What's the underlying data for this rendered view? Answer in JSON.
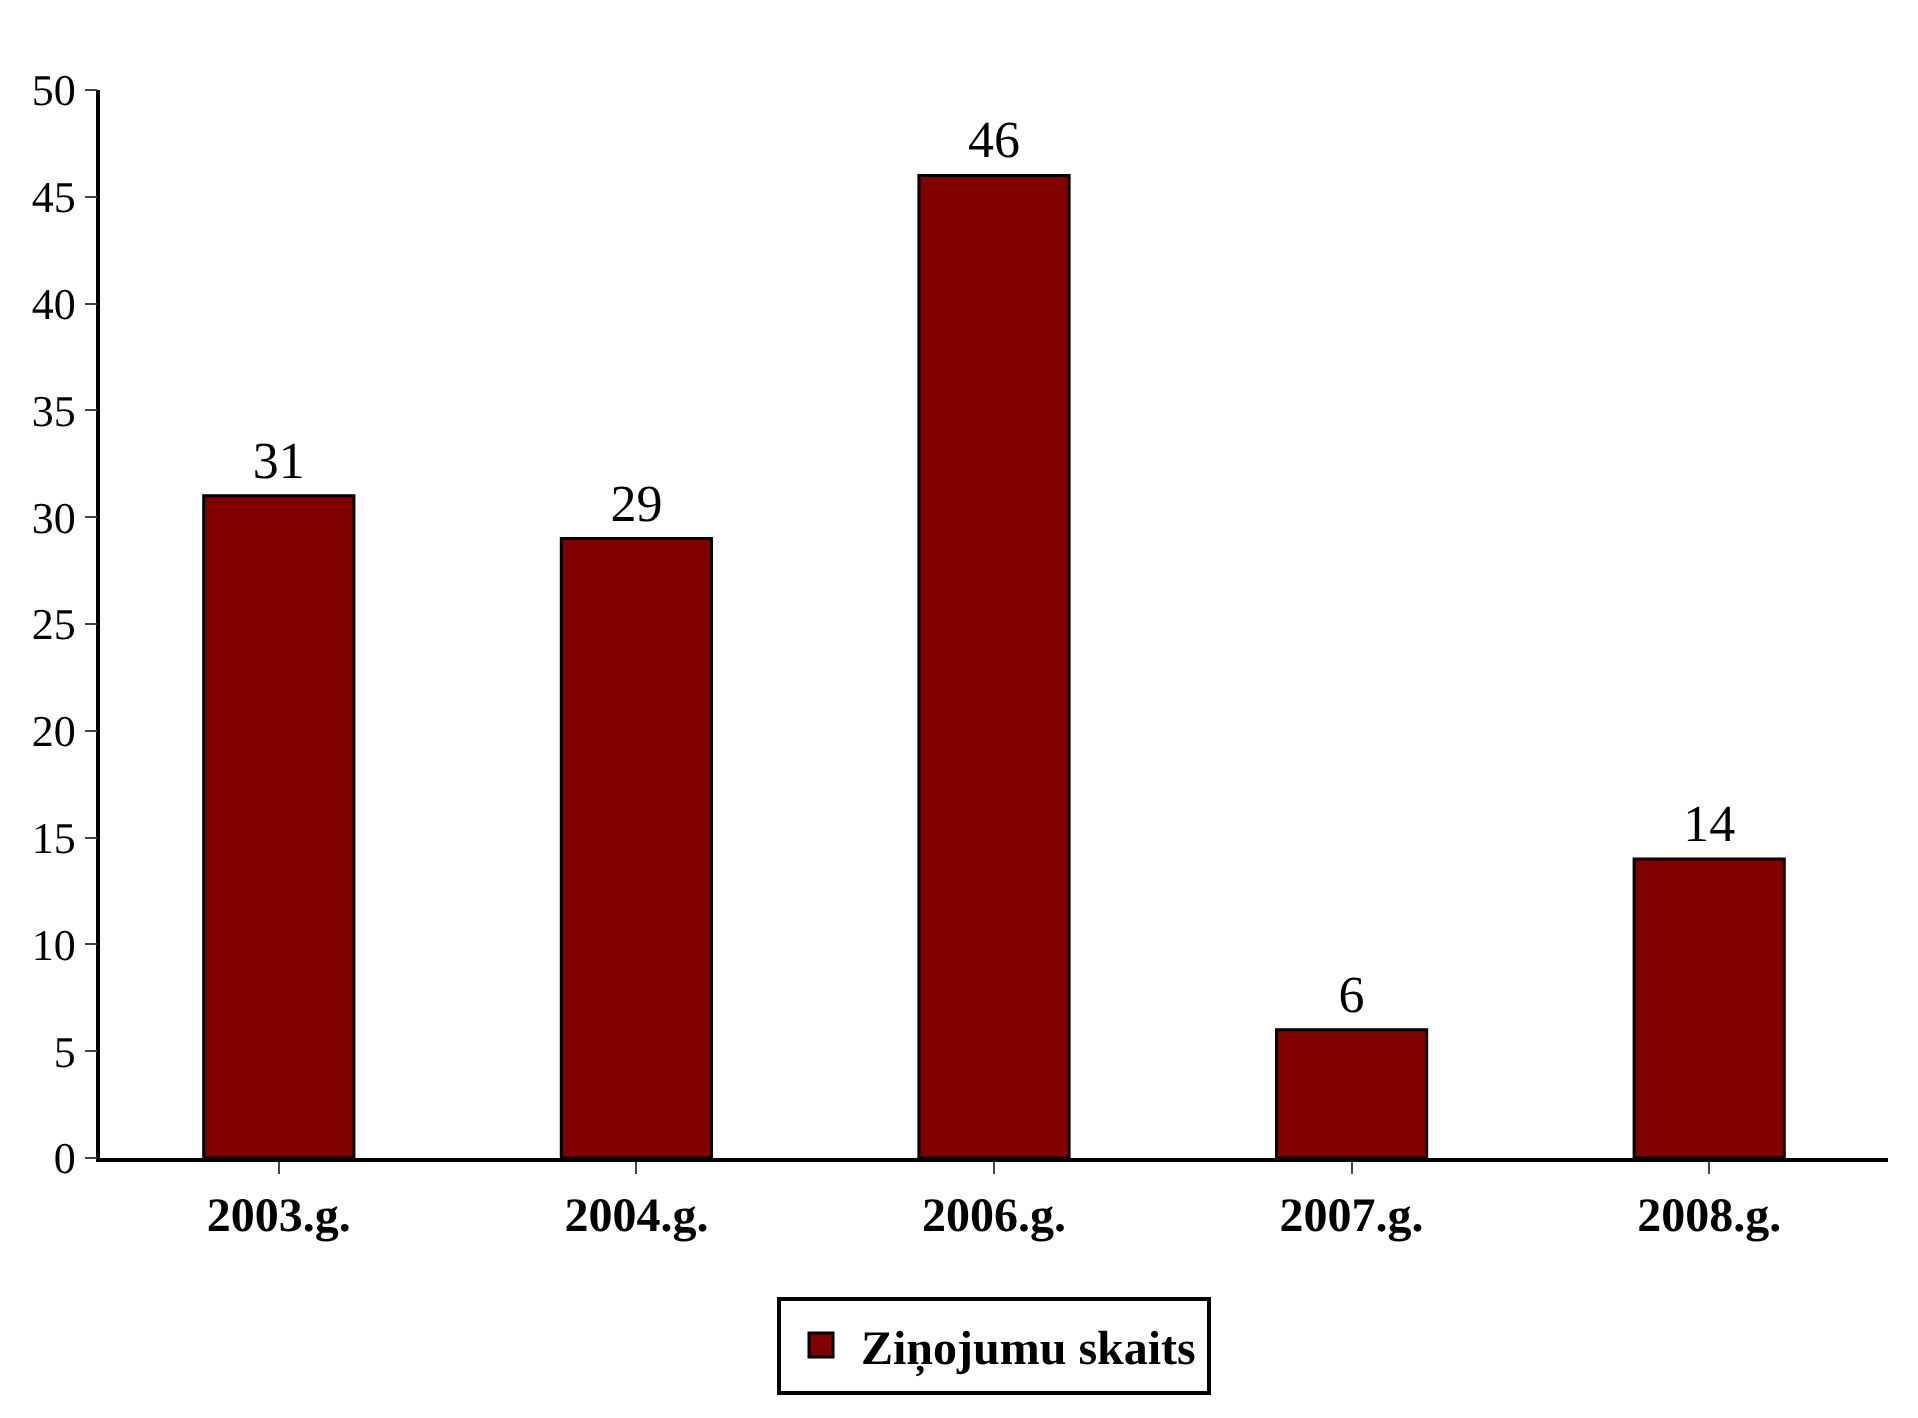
{
  "chart_data": {
    "type": "bar",
    "categories": [
      "2003.g.",
      "2004.g.",
      "2006.g.",
      "2007.g.",
      "2008.g."
    ],
    "series": [
      {
        "name": "Ziņojumu skaits",
        "color": "#800000",
        "values": [
          31,
          29,
          46,
          6,
          14
        ]
      }
    ],
    "ylim": [
      0,
      50
    ],
    "yticks": [
      0,
      5,
      10,
      15,
      20,
      25,
      30,
      35,
      40,
      45,
      50
    ],
    "grid": false,
    "legend": "bottom",
    "data_labels": true
  }
}
